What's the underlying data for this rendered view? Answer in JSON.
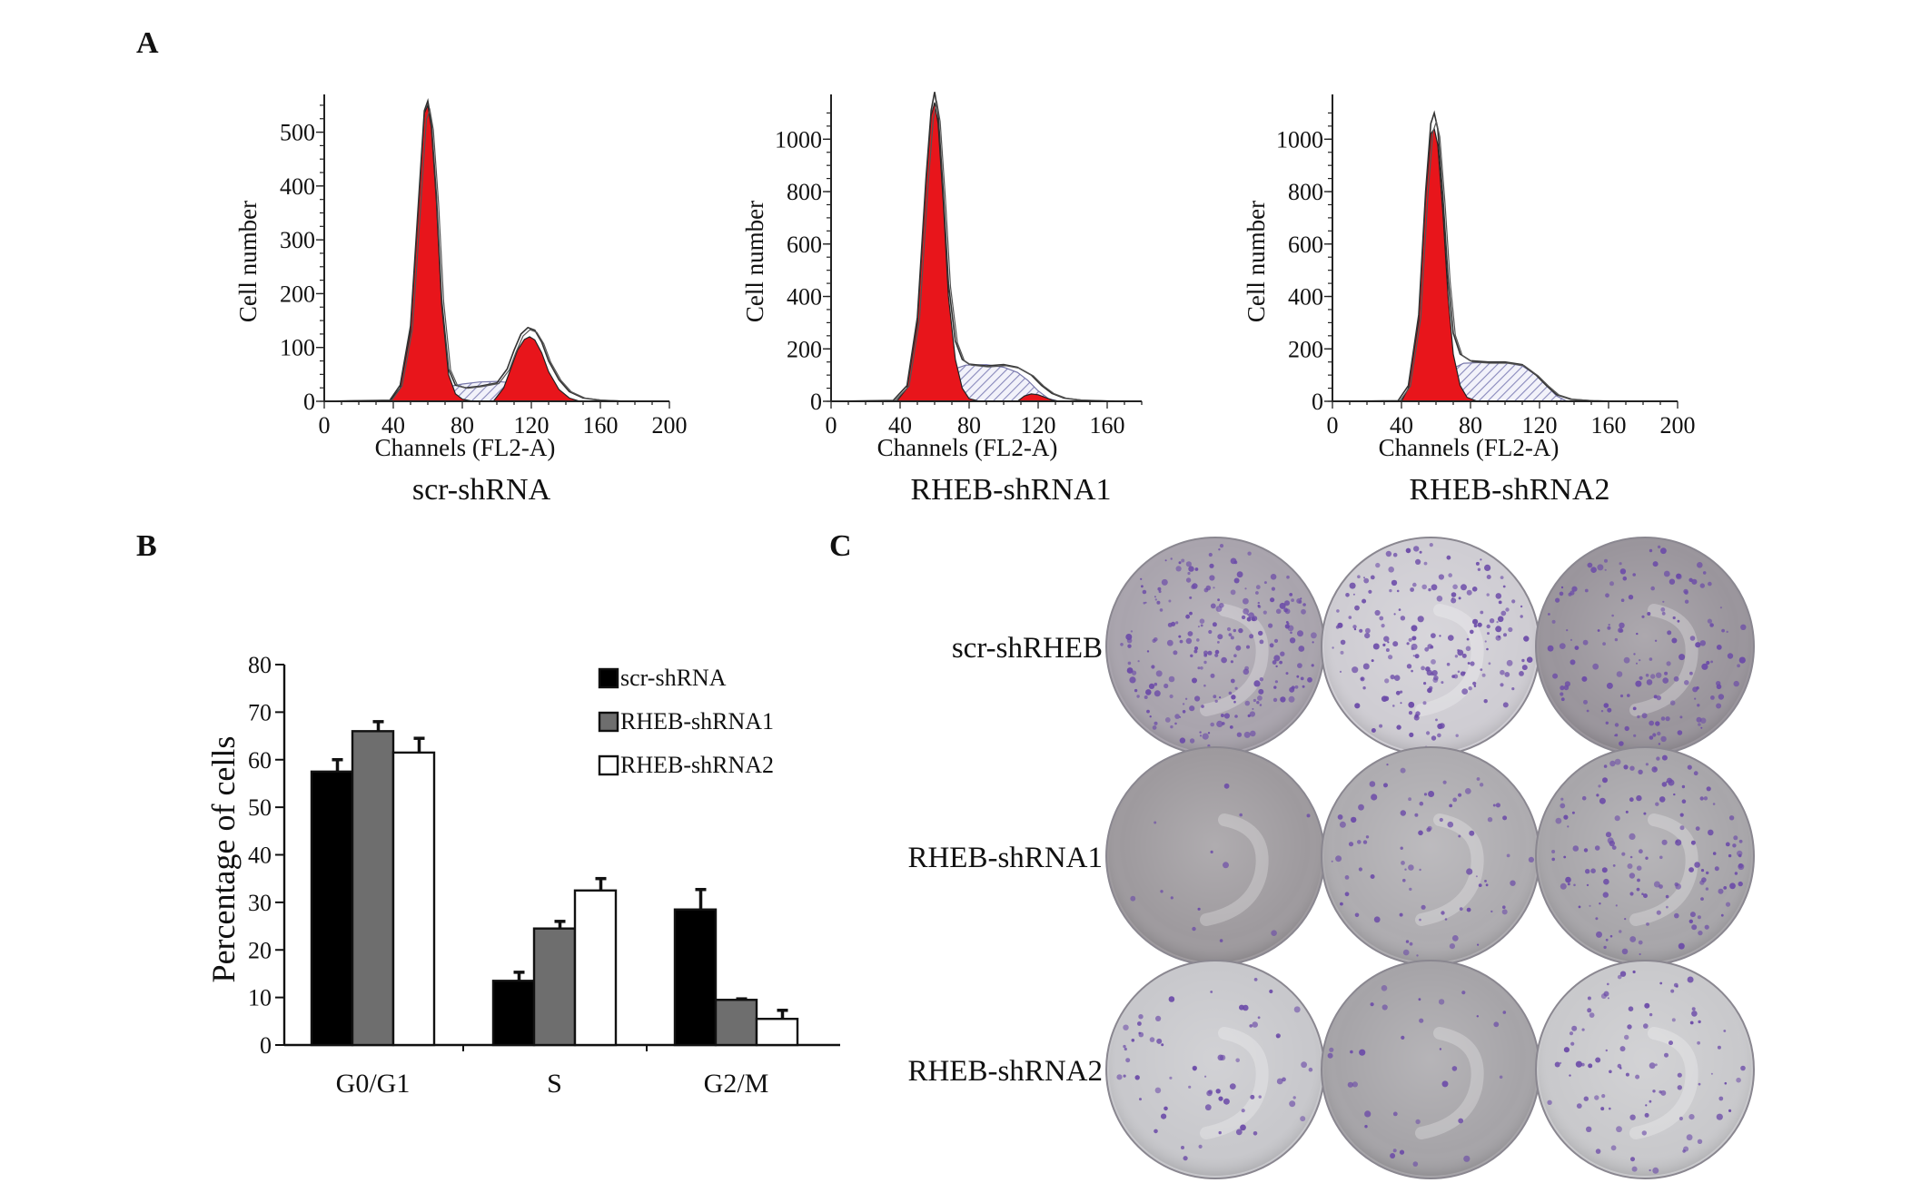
{
  "panels": {
    "A": "A",
    "B": "B",
    "C": "C"
  },
  "chart_data": [
    {
      "type": "area",
      "panel": "A",
      "title": "scr-shRNA",
      "xlabel": "Channels (FL2-A)",
      "ylabel": "Cell number",
      "xlim": [
        0,
        200
      ],
      "ylim": [
        0,
        560
      ],
      "xticks": [
        "0",
        "40",
        "80",
        "120",
        "160",
        "200"
      ],
      "yticks": [
        "0",
        "100",
        "200",
        "300",
        "400",
        "500"
      ],
      "series": {
        "outline": [
          [
            0,
            0
          ],
          [
            38,
            2
          ],
          [
            44,
            30
          ],
          [
            50,
            140
          ],
          [
            55,
            390
          ],
          [
            58,
            540
          ],
          [
            60,
            558
          ],
          [
            62,
            520
          ],
          [
            65,
            380
          ],
          [
            68,
            190
          ],
          [
            72,
            60
          ],
          [
            76,
            30
          ],
          [
            82,
            25
          ],
          [
            90,
            28
          ],
          [
            100,
            34
          ],
          [
            106,
            60
          ],
          [
            110,
            95
          ],
          [
            114,
            125
          ],
          [
            118,
            137
          ],
          [
            122,
            132
          ],
          [
            126,
            110
          ],
          [
            130,
            75
          ],
          [
            136,
            40
          ],
          [
            142,
            18
          ],
          [
            150,
            6
          ],
          [
            160,
            2
          ],
          [
            175,
            0
          ]
        ],
        "g1": [
          [
            38,
            0
          ],
          [
            44,
            25
          ],
          [
            50,
            130
          ],
          [
            55,
            380
          ],
          [
            58,
            535
          ],
          [
            60,
            550
          ],
          [
            62,
            510
          ],
          [
            65,
            370
          ],
          [
            68,
            180
          ],
          [
            72,
            50
          ],
          [
            76,
            14
          ],
          [
            80,
            4
          ],
          [
            86,
            0
          ]
        ],
        "s_phase": [
          [
            40,
            0
          ],
          [
            50,
            8
          ],
          [
            60,
            18
          ],
          [
            70,
            26
          ],
          [
            80,
            32
          ],
          [
            90,
            36
          ],
          [
            100,
            37
          ],
          [
            110,
            34
          ],
          [
            120,
            26
          ],
          [
            130,
            16
          ],
          [
            140,
            6
          ],
          [
            148,
            0
          ]
        ],
        "g2m": [
          [
            98,
            0
          ],
          [
            104,
            25
          ],
          [
            108,
            60
          ],
          [
            112,
            95
          ],
          [
            116,
            115
          ],
          [
            119,
            120
          ],
          [
            122,
            114
          ],
          [
            126,
            90
          ],
          [
            130,
            55
          ],
          [
            136,
            22
          ],
          [
            142,
            6
          ],
          [
            148,
            0
          ]
        ]
      }
    },
    {
      "type": "area",
      "panel": "A",
      "title": "RHEB-shRNA1",
      "xlabel": "Channels (FL2-A)",
      "ylabel": "Cell number",
      "xlim": [
        0,
        180
      ],
      "ylim": [
        0,
        1150
      ],
      "xticks": [
        "0",
        "40",
        "80",
        "120",
        "160"
      ],
      "yticks": [
        "0",
        "200",
        "400",
        "600",
        "800",
        "1000"
      ],
      "series": {
        "outline": [
          [
            0,
            0
          ],
          [
            36,
            3
          ],
          [
            44,
            60
          ],
          [
            50,
            320
          ],
          [
            55,
            850
          ],
          [
            58,
            1110
          ],
          [
            60,
            1180
          ],
          [
            62,
            1100
          ],
          [
            65,
            800
          ],
          [
            68,
            450
          ],
          [
            72,
            230
          ],
          [
            76,
            160
          ],
          [
            80,
            142
          ],
          [
            90,
            135
          ],
          [
            100,
            140
          ],
          [
            108,
            130
          ],
          [
            116,
            100
          ],
          [
            122,
            60
          ],
          [
            128,
            30
          ],
          [
            135,
            12
          ],
          [
            145,
            4
          ],
          [
            160,
            1
          ],
          [
            175,
            0
          ]
        ],
        "g1": [
          [
            38,
            0
          ],
          [
            44,
            50
          ],
          [
            50,
            300
          ],
          [
            55,
            830
          ],
          [
            58,
            1090
          ],
          [
            60,
            1140
          ],
          [
            62,
            1060
          ],
          [
            65,
            760
          ],
          [
            68,
            400
          ],
          [
            72,
            160
          ],
          [
            76,
            50
          ],
          [
            80,
            10
          ],
          [
            86,
            0
          ]
        ],
        "s_phase": [
          [
            42,
            0
          ],
          [
            52,
            30
          ],
          [
            62,
            80
          ],
          [
            70,
            120
          ],
          [
            78,
            138
          ],
          [
            90,
            140
          ],
          [
            100,
            130
          ],
          [
            108,
            110
          ],
          [
            114,
            80
          ],
          [
            120,
            40
          ],
          [
            126,
            10
          ],
          [
            132,
            0
          ]
        ],
        "g2m": [
          [
            108,
            0
          ],
          [
            112,
            20
          ],
          [
            116,
            28
          ],
          [
            120,
            25
          ],
          [
            124,
            15
          ],
          [
            128,
            5
          ],
          [
            132,
            0
          ]
        ]
      }
    },
    {
      "type": "area",
      "panel": "A",
      "title": "RHEB-shRNA2",
      "xlabel": "Channels (FL2-A)",
      "ylabel": "Cell number",
      "xlim": [
        0,
        200
      ],
      "ylim": [
        0,
        1150
      ],
      "xticks": [
        "0",
        "40",
        "80",
        "120",
        "160",
        "200"
      ],
      "yticks": [
        "0",
        "200",
        "400",
        "600",
        "800",
        "1000"
      ],
      "series": {
        "outline": [
          [
            0,
            0
          ],
          [
            38,
            2
          ],
          [
            44,
            60
          ],
          [
            50,
            330
          ],
          [
            54,
            800
          ],
          [
            57,
            1060
          ],
          [
            59,
            1100
          ],
          [
            61,
            1040
          ],
          [
            64,
            780
          ],
          [
            67,
            470
          ],
          [
            70,
            260
          ],
          [
            74,
            180
          ],
          [
            80,
            155
          ],
          [
            90,
            150
          ],
          [
            100,
            150
          ],
          [
            110,
            140
          ],
          [
            118,
            100
          ],
          [
            124,
            60
          ],
          [
            130,
            25
          ],
          [
            138,
            8
          ],
          [
            150,
            2
          ],
          [
            165,
            0
          ]
        ],
        "g1": [
          [
            40,
            0
          ],
          [
            44,
            50
          ],
          [
            50,
            310
          ],
          [
            54,
            780
          ],
          [
            57,
            1020
          ],
          [
            59,
            1040
          ],
          [
            61,
            980
          ],
          [
            64,
            720
          ],
          [
            67,
            400
          ],
          [
            70,
            180
          ],
          [
            74,
            60
          ],
          [
            78,
            15
          ],
          [
            84,
            0
          ]
        ],
        "s_phase": [
          [
            44,
            0
          ],
          [
            52,
            25
          ],
          [
            60,
            70
          ],
          [
            68,
            120
          ],
          [
            76,
            145
          ],
          [
            86,
            148
          ],
          [
            100,
            148
          ],
          [
            110,
            135
          ],
          [
            118,
            100
          ],
          [
            124,
            60
          ],
          [
            130,
            20
          ],
          [
            136,
            0
          ]
        ]
      }
    },
    {
      "type": "bar",
      "panel": "B",
      "ylabel": "Percentage of cells",
      "ylim": [
        0,
        80
      ],
      "yticks": [
        "0",
        "10",
        "20",
        "30",
        "40",
        "50",
        "60",
        "70",
        "80"
      ],
      "categories": [
        "G0/G1",
        "S",
        "G2/M"
      ],
      "legend_position": "top-right",
      "series": [
        {
          "name": "scr-shRNA",
          "values": [
            57.5,
            13.5,
            28.5
          ],
          "errors": [
            2.5,
            1.8,
            4.2
          ],
          "color": "#000000"
        },
        {
          "name": "RHEB-shRNA1",
          "values": [
            66,
            24.5,
            9.5
          ],
          "errors": [
            2.0,
            1.5,
            0.2
          ],
          "color": "#6e6e6e"
        },
        {
          "name": "RHEB-shRNA2",
          "values": [
            61.5,
            32.5,
            5.5
          ],
          "errors": [
            3.0,
            2.5,
            1.8
          ],
          "color": "#ffffff"
        }
      ]
    }
  ],
  "panel_c": {
    "row_labels": [
      "scr-shRHEB",
      "RHEB-shRNA1",
      "RHEB-shRNA2"
    ],
    "colony_color": "#6b4aa8",
    "plate_tones": [
      [
        "#a9a4ad",
        "#cfcdd3",
        "#9a959c"
      ],
      [
        "#9e9a9e",
        "#aeacb0",
        "#a8a6aa"
      ],
      [
        "#c8c8cc",
        "#a6a4a8",
        "#c9c9cc"
      ]
    ],
    "colony_density": [
      [
        0.9,
        0.75,
        0.6
      ],
      [
        0.05,
        0.3,
        0.55
      ],
      [
        0.25,
        0.12,
        0.35
      ]
    ]
  }
}
